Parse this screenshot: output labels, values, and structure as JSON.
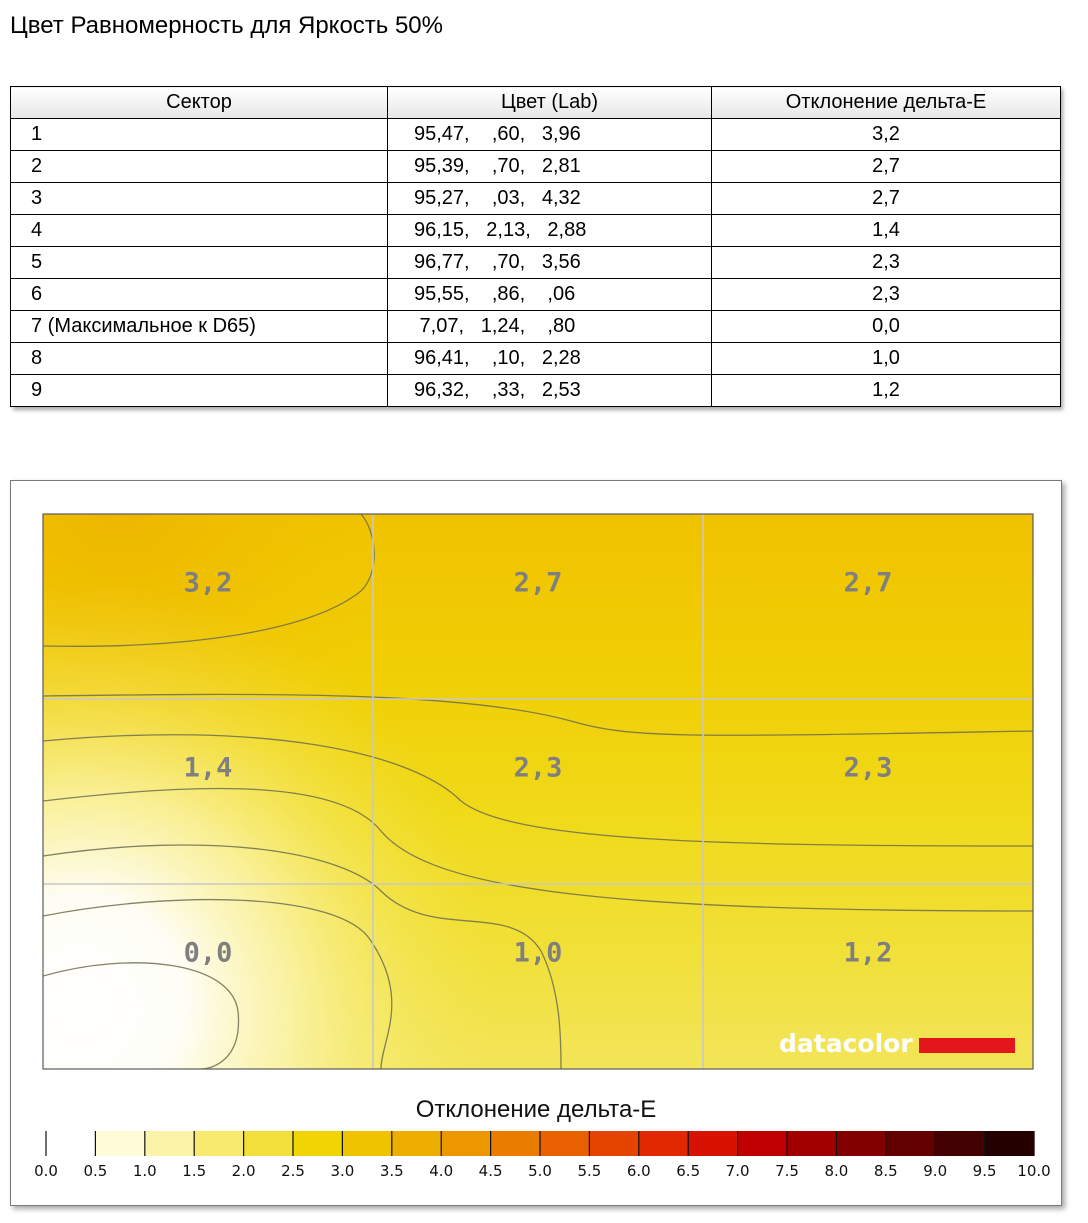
{
  "title": "Цвет Равномерность для Яркость 50%",
  "table": {
    "headers": [
      "Сектор",
      "Цвет (Lab)",
      "Отклонение дельта-E"
    ],
    "rows": [
      {
        "sector": "1",
        "lab": "95,47,    ,60,   3,96",
        "de": "3,2"
      },
      {
        "sector": "2",
        "lab": "95,39,    ,70,   2,81",
        "de": "2,7"
      },
      {
        "sector": "3",
        "lab": "95,27,    ,03,   4,32",
        "de": "2,7"
      },
      {
        "sector": "4",
        "lab": "96,15,   2,13,   2,88",
        "de": "1,4"
      },
      {
        "sector": "5",
        "lab": "96,77,    ,70,   3,56",
        "de": "2,3"
      },
      {
        "sector": "6",
        "lab": "95,55,    ,86,    ,06",
        "de": "2,3"
      },
      {
        "sector": "7 (Максимальное к D65)",
        "lab": " 7,07,   1,24,    ,80",
        "de": "0,0"
      },
      {
        "sector": "8",
        "lab": "96,41,    ,10,   2,28",
        "de": "1,0"
      },
      {
        "sector": "9",
        "lab": "96,32,    ,33,   2,53",
        "de": "1,2"
      }
    ]
  },
  "chart_data": {
    "type": "heatmap",
    "grid_rows": 3,
    "grid_cols": 3,
    "values": [
      [
        3.2,
        2.7,
        2.7
      ],
      [
        1.4,
        2.3,
        2.3
      ],
      [
        0.0,
        1.0,
        1.2
      ]
    ],
    "cell_labels": [
      [
        "3,2",
        "2,7",
        "2,7"
      ],
      [
        "1,4",
        "2,3",
        "2,3"
      ],
      [
        "0,0",
        "1,0",
        "1,2"
      ]
    ],
    "colorbar": {
      "title": "Отклонение дельта-E",
      "range": [
        0,
        10
      ],
      "ticks": [
        "0.0",
        "0.5",
        "1.0",
        "1.5",
        "2.0",
        "2.5",
        "3.0",
        "3.5",
        "4.0",
        "4.5",
        "5.0",
        "5.5",
        "6.0",
        "6.5",
        "7.0",
        "7.5",
        "8.0",
        "8.5",
        "9.0",
        "9.5",
        "10.0"
      ],
      "colors": [
        "#ffffff",
        "#fdfbd8",
        "#fbf3a8",
        "#f7ea6f",
        "#f3df3c",
        "#f0d404",
        "#efc300",
        "#eeae00",
        "#ec9700",
        "#ea7d00",
        "#e86000",
        "#e54300",
        "#e12800",
        "#d71200",
        "#c00000",
        "#a20000",
        "#820000",
        "#620000",
        "#430000",
        "#240000"
      ]
    }
  },
  "logo": {
    "text": "datacolor",
    "bar_color": "#e3161b"
  }
}
